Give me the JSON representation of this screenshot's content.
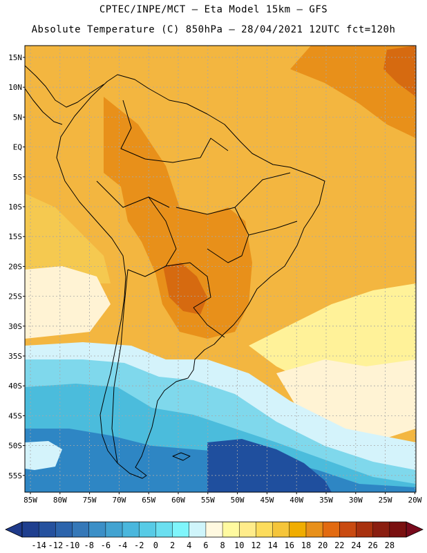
{
  "header": {
    "line1": "CPTEC/INPE/MCT –  Eta Model 15km – GFS",
    "line2": "Absolute Temperature (C) 850hPa – 28/04/2021 12UTC fct=120h"
  },
  "axes": {
    "lat_labels": [
      "15N",
      "10N",
      "5N",
      "EQ",
      "5S",
      "10S",
      "15S",
      "20S",
      "25S",
      "30S",
      "35S",
      "40S",
      "45S",
      "50S",
      "55S"
    ],
    "lon_labels": [
      "85W",
      "80W",
      "75W",
      "70W",
      "65W",
      "60W",
      "55W",
      "50W",
      "45W",
      "40W",
      "35W",
      "30W",
      "25W",
      "20W"
    ]
  },
  "colorbar": {
    "ticks": [
      "-14",
      "-12",
      "-10",
      "-8",
      "-6",
      "-4",
      "-2",
      "0",
      "2",
      "4",
      "6",
      "8",
      "10",
      "12",
      "14",
      "16",
      "18",
      "20",
      "22",
      "24",
      "26",
      "28"
    ],
    "colors": [
      "#1f3f8f",
      "#25519e",
      "#2c64ac",
      "#3578b8",
      "#3b8fc7",
      "#42a3d1",
      "#4ab7dd",
      "#57cbe6",
      "#6adff0",
      "#7ff5fb",
      "#cff5fb",
      "#fff9e0",
      "#fffaa0",
      "#ffec8a",
      "#fcdc5c",
      "#f5c53a",
      "#f0ad00",
      "#e8901a",
      "#e26a10",
      "#c94a10",
      "#a8310e",
      "#8a1e10",
      "#7a1010"
    ],
    "under_color": "#1f3a8a",
    "over_color": "#780a1c"
  },
  "map_layers": {
    "background": "#f3b640",
    "land_fill": "#f0a824",
    "hot_core": "#e8901a",
    "hot_spot": "#d66a10",
    "warm_band": "#f5c950",
    "cream_band": "#fff3d4",
    "yellow_band": "#fff299",
    "pale_cyan_band": "#d4f3fb",
    "light_blue_band": "#7fd8ec",
    "cyan_band": "#4bbcdc",
    "mid_blue_band": "#2e86c4",
    "deep_blue_core": "#1f4f9e"
  }
}
